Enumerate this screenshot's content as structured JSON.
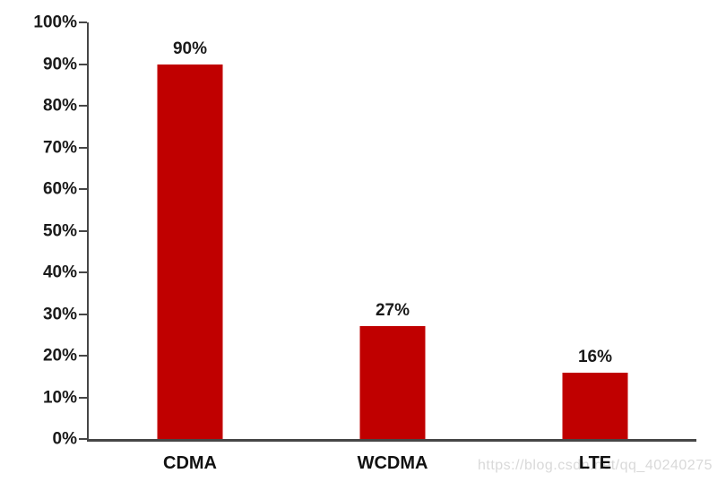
{
  "chart_data": {
    "type": "bar",
    "categories": [
      "CDMA",
      "WCDMA",
      "LTE"
    ],
    "values": [
      90,
      27,
      16
    ],
    "value_labels": [
      "90%",
      "27%",
      "16%"
    ],
    "title": "",
    "xlabel": "",
    "ylabel": "",
    "ylim": [
      0,
      100
    ],
    "ytick_step": 10,
    "ytick_labels": [
      "0%",
      "10%",
      "20%",
      "30%",
      "40%",
      "50%",
      "60%",
      "70%",
      "80%",
      "90%",
      "100%"
    ],
    "grid": false,
    "legend": false,
    "bar_color": "#c00000",
    "axis_color": "#464646",
    "label_color": "#1a1a1a"
  },
  "watermark": {
    "text": "https://blog.csdn.net/qq_40240275",
    "color": "#d9d9d9"
  }
}
